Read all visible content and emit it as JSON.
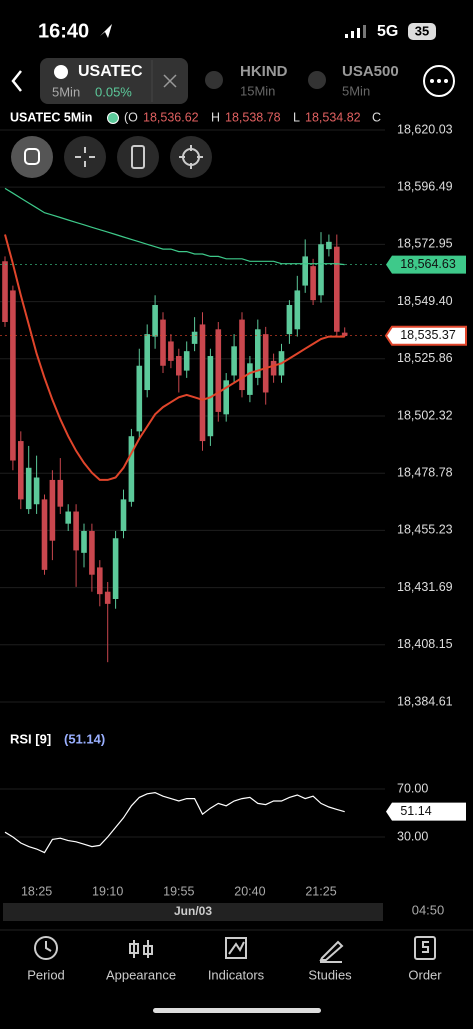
{
  "status": {
    "time": "16:40",
    "network": "5G",
    "battery": "35"
  },
  "tabs": [
    {
      "symbol": "USATEC",
      "interval": "5Min",
      "change": "0.05%"
    },
    {
      "symbol": "HKIND",
      "interval": "15Min"
    },
    {
      "symbol": "USA500",
      "interval": "5Min"
    }
  ],
  "header": {
    "symbol": "USATEC 5Min",
    "open_label": "(O",
    "open": "18,536.62",
    "high_label": "H",
    "high": "18,538.78",
    "low_label": "L",
    "low": "18,534.82",
    "close_label": "C"
  },
  "chart_data": [
    {
      "type": "candlestick",
      "up_color": "#5cc99a",
      "down_color": "#c9474e",
      "categories": [
        null,
        null,
        null,
        null,
        "18:25",
        null,
        null,
        null,
        null,
        null,
        null,
        null,
        null,
        "19:10",
        null,
        null,
        null,
        null,
        null,
        null,
        null,
        null,
        "19:55",
        null,
        null,
        null,
        null,
        null,
        null,
        null,
        null,
        "20:40",
        null,
        null,
        null,
        null,
        null,
        null,
        null,
        null,
        "21:25",
        null,
        null,
        null
      ],
      "open": [
        18566,
        18554,
        18492,
        18464,
        18466,
        18468,
        18476,
        18476,
        18458,
        18463,
        18446,
        18455,
        18440,
        18430,
        18427,
        18455,
        18467,
        18496,
        18513,
        18535,
        18542,
        18533,
        18527,
        18521,
        18532,
        18540,
        18494,
        18538,
        18503,
        18519,
        18542,
        18511,
        18518,
        18536,
        18525,
        18519,
        18536,
        18538,
        18556,
        18564,
        18552,
        18571,
        18572,
        18536.62
      ],
      "high": [
        18568,
        18556,
        18496,
        18490,
        18486,
        18470,
        18480,
        18485,
        18466,
        18466,
        18458,
        18458,
        18443,
        18434,
        18455,
        18472,
        18497,
        18530,
        18540,
        18552,
        18545,
        18536,
        18530,
        18533,
        18543,
        18545,
        18530,
        18541,
        18520,
        18536,
        18545,
        18527,
        18542,
        18539,
        18528,
        18532,
        18550,
        18560,
        18575,
        18567,
        18578,
        18577,
        18577,
        18538.78
      ],
      "low": [
        18539,
        18480,
        18464,
        18462,
        18462,
        18437,
        18443,
        18462,
        18455,
        18432,
        18440,
        18430,
        18424,
        18401,
        18423,
        18452,
        18465,
        18493,
        18510,
        18530,
        18520,
        18522,
        18512,
        18518,
        18529,
        18488,
        18490,
        18500,
        18500,
        18516,
        18510,
        18508,
        18515,
        18507,
        18516,
        18516,
        18532,
        18535,
        18553,
        18548,
        18549,
        18568,
        18535,
        18534.82
      ],
      "close": [
        18541,
        18484,
        18468,
        18481,
        18477,
        18439,
        18451,
        18465,
        18463,
        18447,
        18455,
        18437,
        18429,
        18425,
        18452,
        18468,
        18494,
        18523,
        18536,
        18548,
        18523,
        18525,
        18519,
        18529,
        18537,
        18492,
        18527,
        18504,
        18517,
        18531,
        18513,
        18524,
        18538,
        18512,
        18519,
        18529,
        18548,
        18554,
        18568,
        18550,
        18573,
        18574,
        18537,
        18535.37
      ],
      "lines": [
        {
          "color": "#3ec98a",
          "values": [
            18596,
            18594,
            18592,
            18590,
            18588,
            18586,
            18585,
            18584,
            18583,
            18582,
            18581,
            18580,
            18579,
            18578,
            18577,
            18576,
            18575,
            18574,
            18573,
            18572,
            18571,
            18571,
            18570,
            18570,
            18569,
            18569,
            18568,
            18568,
            18567,
            18567,
            18567,
            18566,
            18566,
            18566,
            18566,
            18565,
            18565,
            18565,
            18565,
            18565,
            18565,
            18565,
            18565,
            18564.63
          ]
        },
        {
          "color": "#e0452b",
          "values": [
            18577,
            18565,
            18552,
            18540,
            18528,
            18518,
            18509,
            18501,
            18494,
            18488,
            18483,
            18479,
            18476,
            18476,
            18477,
            18481,
            18487,
            18493,
            18498,
            18503,
            18506,
            18508,
            18510,
            18511,
            18510,
            18509,
            18510,
            18512,
            18514,
            18516,
            18518,
            18520,
            18521,
            18522,
            18523,
            18524,
            18526,
            18528,
            18530,
            18532,
            18534,
            18535,
            18535,
            18535
          ]
        }
      ],
      "price_tags": [
        {
          "value": 18564.63,
          "label": "18,564.63",
          "color": "#3ec98a"
        },
        {
          "value": 18535.37,
          "label": "18,535.37",
          "color": "#e0452b"
        }
      ],
      "ylim": [
        18377.2,
        18626.2
      ],
      "yticks": [
        {
          "value": 18620.03,
          "label": "18,620.03"
        },
        {
          "value": 18596.49,
          "label": "18,596.49"
        },
        {
          "value": 18572.95,
          "label": "18,572.95"
        },
        {
          "value": 18549.4,
          "label": "18,549.40"
        },
        {
          "value": 18525.86,
          "label": "18,525.86"
        },
        {
          "value": 18502.32,
          "label": "18,502.32"
        },
        {
          "value": 18478.78,
          "label": "18,478.78"
        },
        {
          "value": 18455.23,
          "label": "18,455.23"
        },
        {
          "value": 18431.69,
          "label": "18,431.69"
        },
        {
          "value": 18408.15,
          "label": "18,408.15"
        },
        {
          "value": 18384.61,
          "label": "18,384.61"
        }
      ],
      "grid": true
    },
    {
      "type": "line",
      "title": "RSI [9]",
      "current": {
        "value": 51.14,
        "label": "(51.14)"
      },
      "color": "#ffffff",
      "values": [
        34,
        30,
        25,
        22,
        20,
        17,
        28,
        29,
        27,
        26,
        24,
        22,
        23,
        30,
        38,
        46,
        56,
        63,
        66,
        67,
        64,
        62,
        60,
        62,
        62,
        49,
        54,
        58,
        56,
        60,
        62,
        63,
        58,
        57,
        60,
        60,
        63,
        65,
        62,
        64,
        58,
        55,
        53,
        51.14
      ],
      "price_tag": {
        "value": 51.14,
        "label": "51.14"
      },
      "ylim": [
        2.5,
        94.2
      ],
      "yticks": [
        {
          "value": 70,
          "label": "70.00"
        },
        {
          "value": 30,
          "label": "30.00"
        }
      ],
      "grid": true
    }
  ],
  "time_bar": {
    "date": "Jun/03",
    "countdown": "04:50"
  },
  "nav": [
    "Period",
    "Appearance",
    "Indicators",
    "Studies",
    "Order"
  ]
}
